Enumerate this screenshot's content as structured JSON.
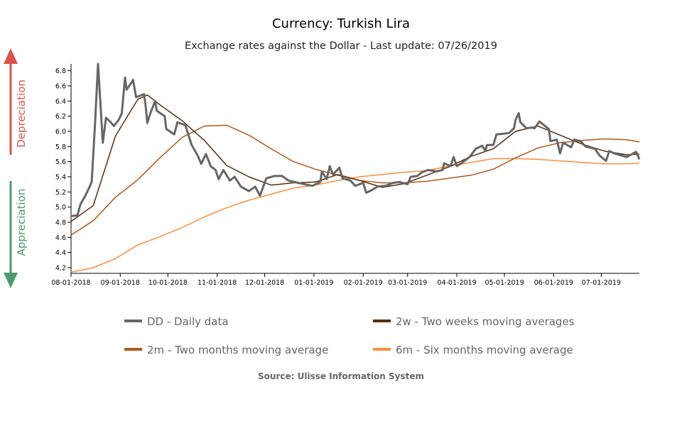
{
  "chart_data": {
    "type": "line",
    "title": "Currency: Turkish Lira",
    "subtitle": "Exchange rates against the Dollar - Last update: 07/26/2019",
    "source": "Source: Ulisse Information System",
    "side_labels": {
      "up": "Depreciation",
      "down": "Appreciation",
      "up_color": "#d9534f",
      "down_color": "#4e9a6e"
    },
    "xlim": [
      "2018-08-01",
      "2019-07-25"
    ],
    "ylim": [
      4.125,
      6.89
    ],
    "x_ticks": [
      {
        "date": "2018-08-01",
        "label": "08-01-2018"
      },
      {
        "date": "2018-09-01",
        "label": "09-01-2018"
      },
      {
        "date": "2018-10-01",
        "label": "10-01-2018"
      },
      {
        "date": "2018-11-01",
        "label": "11-01-2018"
      },
      {
        "date": "2018-12-01",
        "label": "12-01-2018"
      },
      {
        "date": "2019-01-01",
        "label": "01-01-2019"
      },
      {
        "date": "2019-02-01",
        "label": "02-01-2019"
      },
      {
        "date": "2019-03-01",
        "label": "03-01-2019"
      },
      {
        "date": "2019-04-01",
        "label": "04-01-2019"
      },
      {
        "date": "2019-05-01",
        "label": "05-01-2019"
      },
      {
        "date": "2019-06-01",
        "label": "06-01-2019"
      },
      {
        "date": "2019-07-01",
        "label": "07-01-2019"
      }
    ],
    "y_ticks": [
      "4.2",
      "4.4",
      "4.6",
      "4.8",
      "5.0",
      "5.2",
      "5.4",
      "5.6",
      "5.8",
      "6.0",
      "6.2",
      "6.4",
      "6.6",
      "6.8"
    ],
    "legend_placement": "bottom",
    "series": [
      {
        "name": "DD - Daily data",
        "color": "#666666",
        "width": 3,
        "points": [
          [
            "2018-08-01",
            4.88
          ],
          [
            "2018-08-05",
            4.89
          ],
          [
            "2018-08-07",
            5.04
          ],
          [
            "2018-08-10",
            5.15
          ],
          [
            "2018-08-13",
            5.28
          ],
          [
            "2018-08-14",
            5.34
          ],
          [
            "2018-08-16",
            6.05
          ],
          [
            "2018-08-18",
            6.89
          ],
          [
            "2018-08-21",
            5.85
          ],
          [
            "2018-08-23",
            6.18
          ],
          [
            "2018-08-26",
            6.12
          ],
          [
            "2018-08-28",
            6.07
          ],
          [
            "2018-08-31",
            6.15
          ],
          [
            "2018-09-02",
            6.24
          ],
          [
            "2018-09-04",
            6.71
          ],
          [
            "2018-09-05",
            6.55
          ],
          [
            "2018-09-08",
            6.64
          ],
          [
            "2018-09-09",
            6.68
          ],
          [
            "2018-09-11",
            6.45
          ],
          [
            "2018-09-16",
            6.49
          ],
          [
            "2018-09-17",
            6.34
          ],
          [
            "2018-09-18",
            6.11
          ],
          [
            "2018-09-20",
            6.24
          ],
          [
            "2018-09-23",
            6.4
          ],
          [
            "2018-09-24",
            6.27
          ],
          [
            "2018-09-29",
            6.2
          ],
          [
            "2018-09-30",
            6.03
          ],
          [
            "2018-10-05",
            5.96
          ],
          [
            "2018-10-07",
            6.12
          ],
          [
            "2018-10-12",
            6.08
          ],
          [
            "2018-10-16",
            5.82
          ],
          [
            "2018-10-20",
            5.67
          ],
          [
            "2018-10-22",
            5.57
          ],
          [
            "2018-10-25",
            5.7
          ],
          [
            "2018-10-28",
            5.54
          ],
          [
            "2018-10-31",
            5.49
          ],
          [
            "2018-11-02",
            5.37
          ],
          [
            "2018-11-05",
            5.49
          ],
          [
            "2018-11-09",
            5.35
          ],
          [
            "2018-11-12",
            5.4
          ],
          [
            "2018-11-16",
            5.27
          ],
          [
            "2018-11-21",
            5.21
          ],
          [
            "2018-11-25",
            5.27
          ],
          [
            "2018-11-28",
            5.15
          ],
          [
            "2018-12-02",
            5.38
          ],
          [
            "2018-12-07",
            5.41
          ],
          [
            "2018-12-12",
            5.41
          ],
          [
            "2018-12-16",
            5.35
          ],
          [
            "2018-12-22",
            5.32
          ],
          [
            "2018-12-31",
            5.28
          ],
          [
            "2019-01-05",
            5.33
          ],
          [
            "2019-01-06",
            5.47
          ],
          [
            "2019-01-09",
            5.37
          ],
          [
            "2019-01-11",
            5.54
          ],
          [
            "2019-01-13",
            5.43
          ],
          [
            "2019-01-17",
            5.52
          ],
          [
            "2019-01-19",
            5.38
          ],
          [
            "2019-01-24",
            5.35
          ],
          [
            "2019-01-27",
            5.28
          ],
          [
            "2019-02-01",
            5.32
          ],
          [
            "2019-02-03",
            5.19
          ],
          [
            "2019-02-07",
            5.23
          ],
          [
            "2019-02-10",
            5.27
          ],
          [
            "2019-02-15",
            5.28
          ],
          [
            "2019-02-20",
            5.32
          ],
          [
            "2019-02-24",
            5.33
          ],
          [
            "2019-03-01",
            5.3
          ],
          [
            "2019-03-03",
            5.4
          ],
          [
            "2019-03-07",
            5.41
          ],
          [
            "2019-03-10",
            5.46
          ],
          [
            "2019-03-14",
            5.49
          ],
          [
            "2019-03-19",
            5.47
          ],
          [
            "2019-03-23",
            5.49
          ],
          [
            "2019-03-24",
            5.58
          ],
          [
            "2019-03-28",
            5.54
          ],
          [
            "2019-03-30",
            5.66
          ],
          [
            "2019-04-01",
            5.54
          ],
          [
            "2019-04-04",
            5.58
          ],
          [
            "2019-04-09",
            5.66
          ],
          [
            "2019-04-13",
            5.77
          ],
          [
            "2019-04-17",
            5.81
          ],
          [
            "2019-04-19",
            5.74
          ],
          [
            "2019-04-20",
            5.82
          ],
          [
            "2019-04-24",
            5.82
          ],
          [
            "2019-04-26",
            5.96
          ],
          [
            "2019-05-01",
            5.97
          ],
          [
            "2019-05-04",
            5.98
          ],
          [
            "2019-05-07",
            6.04
          ],
          [
            "2019-05-08",
            6.15
          ],
          [
            "2019-05-10",
            6.24
          ],
          [
            "2019-05-11",
            6.12
          ],
          [
            "2019-05-15",
            6.04
          ],
          [
            "2019-05-18",
            6.05
          ],
          [
            "2019-05-20",
            6.04
          ],
          [
            "2019-05-23",
            6.13
          ],
          [
            "2019-05-29",
            6.03
          ],
          [
            "2019-05-30",
            5.87
          ],
          [
            "2019-06-03",
            5.89
          ],
          [
            "2019-06-05",
            5.71
          ],
          [
            "2019-06-07",
            5.85
          ],
          [
            "2019-06-12",
            5.79
          ],
          [
            "2019-06-14",
            5.89
          ],
          [
            "2019-06-18",
            5.87
          ],
          [
            "2019-06-21",
            5.8
          ],
          [
            "2019-06-27",
            5.77
          ],
          [
            "2019-06-30",
            5.68
          ],
          [
            "2019-07-04",
            5.61
          ],
          [
            "2019-07-06",
            5.74
          ],
          [
            "2019-07-09",
            5.71
          ],
          [
            "2019-07-17",
            5.66
          ],
          [
            "2019-07-23",
            5.73
          ],
          [
            "2019-07-25",
            5.63
          ]
        ]
      },
      {
        "name": "2w - Two weeks moving averages",
        "color": "#5a2c0a",
        "width": 1.5,
        "points": [
          [
            "2018-08-01",
            4.81
          ],
          [
            "2018-08-15",
            5.02
          ],
          [
            "2018-08-29",
            5.94
          ],
          [
            "2018-09-12",
            6.42
          ],
          [
            "2018-09-18",
            6.48
          ],
          [
            "2018-09-26",
            6.35
          ],
          [
            "2018-10-10",
            6.14
          ],
          [
            "2018-10-24",
            5.88
          ],
          [
            "2018-11-07",
            5.55
          ],
          [
            "2018-11-21",
            5.4
          ],
          [
            "2018-12-05",
            5.29
          ],
          [
            "2018-12-19",
            5.32
          ],
          [
            "2019-01-02",
            5.33
          ],
          [
            "2019-01-16",
            5.43
          ],
          [
            "2019-01-30",
            5.35
          ],
          [
            "2019-02-13",
            5.26
          ],
          [
            "2019-02-27",
            5.31
          ],
          [
            "2019-03-13",
            5.42
          ],
          [
            "2019-03-27",
            5.53
          ],
          [
            "2019-04-10",
            5.67
          ],
          [
            "2019-04-24",
            5.77
          ],
          [
            "2019-05-08",
            6.0
          ],
          [
            "2019-05-22",
            6.07
          ],
          [
            "2019-06-05",
            5.95
          ],
          [
            "2019-06-19",
            5.83
          ],
          [
            "2019-07-03",
            5.74
          ],
          [
            "2019-07-17",
            5.69
          ],
          [
            "2019-07-25",
            5.7
          ]
        ]
      },
      {
        "name": "2m - Two months moving average",
        "color": "#b0581c",
        "width": 1.5,
        "points": [
          [
            "2018-08-01",
            4.63
          ],
          [
            "2018-08-15",
            4.82
          ],
          [
            "2018-08-29",
            5.13
          ],
          [
            "2018-09-12",
            5.36
          ],
          [
            "2018-09-26",
            5.65
          ],
          [
            "2018-10-10",
            5.92
          ],
          [
            "2018-10-24",
            6.07
          ],
          [
            "2018-11-07",
            6.08
          ],
          [
            "2018-11-21",
            5.95
          ],
          [
            "2018-12-05",
            5.77
          ],
          [
            "2018-12-19",
            5.6
          ],
          [
            "2019-01-02",
            5.5
          ],
          [
            "2019-01-16",
            5.42
          ],
          [
            "2019-01-30",
            5.35
          ],
          [
            "2019-02-13",
            5.32
          ],
          [
            "2019-02-27",
            5.32
          ],
          [
            "2019-03-13",
            5.34
          ],
          [
            "2019-03-27",
            5.38
          ],
          [
            "2019-04-10",
            5.42
          ],
          [
            "2019-04-24",
            5.5
          ],
          [
            "2019-05-08",
            5.65
          ],
          [
            "2019-05-22",
            5.78
          ],
          [
            "2019-06-05",
            5.85
          ],
          [
            "2019-06-19",
            5.88
          ],
          [
            "2019-07-03",
            5.9
          ],
          [
            "2019-07-17",
            5.89
          ],
          [
            "2019-07-25",
            5.86
          ]
        ]
      },
      {
        "name": "6m - Six months moving average",
        "color": "#ff8c3c",
        "width": 1.5,
        "points": [
          [
            "2018-08-01",
            4.14
          ],
          [
            "2018-08-15",
            4.2
          ],
          [
            "2018-08-29",
            4.32
          ],
          [
            "2018-09-12",
            4.5
          ],
          [
            "2018-09-26",
            4.61
          ],
          [
            "2018-10-10",
            4.73
          ],
          [
            "2018-10-24",
            4.87
          ],
          [
            "2018-11-07",
            4.99
          ],
          [
            "2018-11-21",
            5.09
          ],
          [
            "2018-12-05",
            5.17
          ],
          [
            "2018-12-19",
            5.25
          ],
          [
            "2019-01-02",
            5.29
          ],
          [
            "2019-01-16",
            5.35
          ],
          [
            "2019-01-30",
            5.4
          ],
          [
            "2019-02-13",
            5.43
          ],
          [
            "2019-02-27",
            5.46
          ],
          [
            "2019-03-13",
            5.48
          ],
          [
            "2019-03-27",
            5.54
          ],
          [
            "2019-04-10",
            5.59
          ],
          [
            "2019-04-24",
            5.64
          ],
          [
            "2019-05-08",
            5.64
          ],
          [
            "2019-05-22",
            5.63
          ],
          [
            "2019-06-05",
            5.61
          ],
          [
            "2019-06-19",
            5.59
          ],
          [
            "2019-07-03",
            5.57
          ],
          [
            "2019-07-17",
            5.57
          ],
          [
            "2019-07-25",
            5.58
          ]
        ]
      }
    ]
  }
}
